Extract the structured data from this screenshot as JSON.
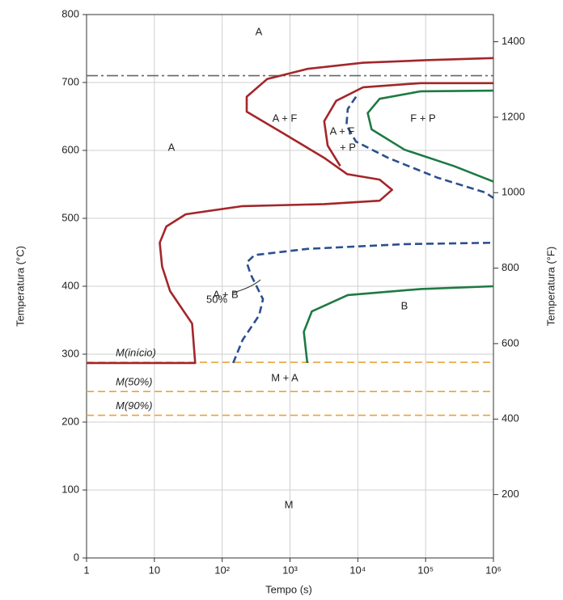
{
  "chart_data": {
    "type": "line",
    "x_label": "Tempo (s)",
    "y_label": "Temperatura (°C)",
    "y2_label": "Temperatura (°F)",
    "xscale": "log",
    "xlim": [
      1,
      1000000
    ],
    "xticks": [
      1,
      10,
      {
        "value": 100,
        "label": "10²"
      },
      {
        "value": 1000,
        "label": "10³"
      },
      {
        "value": 10000,
        "label": "10⁴"
      },
      {
        "value": 100000,
        "label": "10⁵"
      },
      {
        "value": 1000000,
        "label": "10⁶"
      }
    ],
    "ylim": [
      0,
      800
    ],
    "yticks": [
      0,
      100,
      200,
      300,
      400,
      500,
      600,
      700,
      800
    ],
    "y2lim": [
      32,
      1472
    ],
    "y2ticks": [
      200,
      400,
      600,
      800,
      1000,
      1200,
      1400
    ],
    "grid": true,
    "hlines": [
      {
        "value": 710,
        "color": "#666666",
        "style": "dashdot"
      },
      {
        "value": 288,
        "color": "#e8a33a",
        "style": "dashed",
        "label": "M(início)"
      },
      {
        "value": 245,
        "color": "#e8a33a",
        "style": "dashed",
        "label": "M(50%)"
      },
      {
        "value": 210,
        "color": "#e8a33a",
        "style": "dashed",
        "label": "M(90%)"
      }
    ],
    "series": [
      {
        "color": "#a3262a",
        "style": "solid",
        "x": [
          1,
          40,
          36,
          17,
          13,
          12,
          15,
          29,
          200,
          3200,
          21000,
          32000,
          21000,
          7000,
          3200,
          800,
          230,
          230,
          460,
          1800,
          12000,
          110000,
          1000000
        ],
        "y": [
          287,
          287,
          345,
          393,
          429,
          464,
          488,
          506,
          518,
          521,
          526,
          542,
          557,
          565,
          589,
          625,
          657,
          679,
          705,
          720,
          729,
          733,
          736
        ]
      },
      {
        "color": "#a3262a",
        "style": "solid",
        "x": [
          1000000,
          85000,
          12000,
          4800,
          3200,
          3600,
          5500
        ],
        "y": [
          699,
          699,
          693,
          673,
          643,
          607,
          577
        ]
      },
      {
        "color": "#2b4f8f",
        "style": "dashed",
        "x": [
          9400,
          7100,
          6800,
          9400,
          28000,
          148000,
          760000,
          1000000
        ],
        "y": [
          679,
          661,
          637,
          613,
          589,
          560,
          538,
          530
        ]
      },
      {
        "color": "#1e7a44",
        "style": "solid",
        "x": [
          1000000,
          260000,
          49000,
          16000,
          14000,
          21000,
          85000,
          1000000
        ],
        "y": [
          554,
          577,
          601,
          631,
          655,
          676,
          687,
          688
        ]
      },
      {
        "color": "#2b4f8f",
        "style": "dashed",
        "x": [
          145,
          200,
          350,
          400,
          265,
          230,
          300,
          1800,
          49000,
          1000000
        ],
        "y": [
          287,
          321,
          357,
          381,
          417,
          435,
          446,
          455,
          462,
          464
        ]
      },
      {
        "color": "#1e7a44",
        "style": "solid",
        "x": [
          1800,
          1600,
          2100,
          7100,
          85000,
          1000000
        ],
        "y": [
          287,
          333,
          363,
          387,
          396,
          400
        ]
      }
    ],
    "annotations": [
      "A",
      "A",
      "A + F",
      "A + F",
      "+ P",
      "F + P",
      "A + B",
      "50%",
      "B",
      "M + A",
      "M"
    ]
  }
}
